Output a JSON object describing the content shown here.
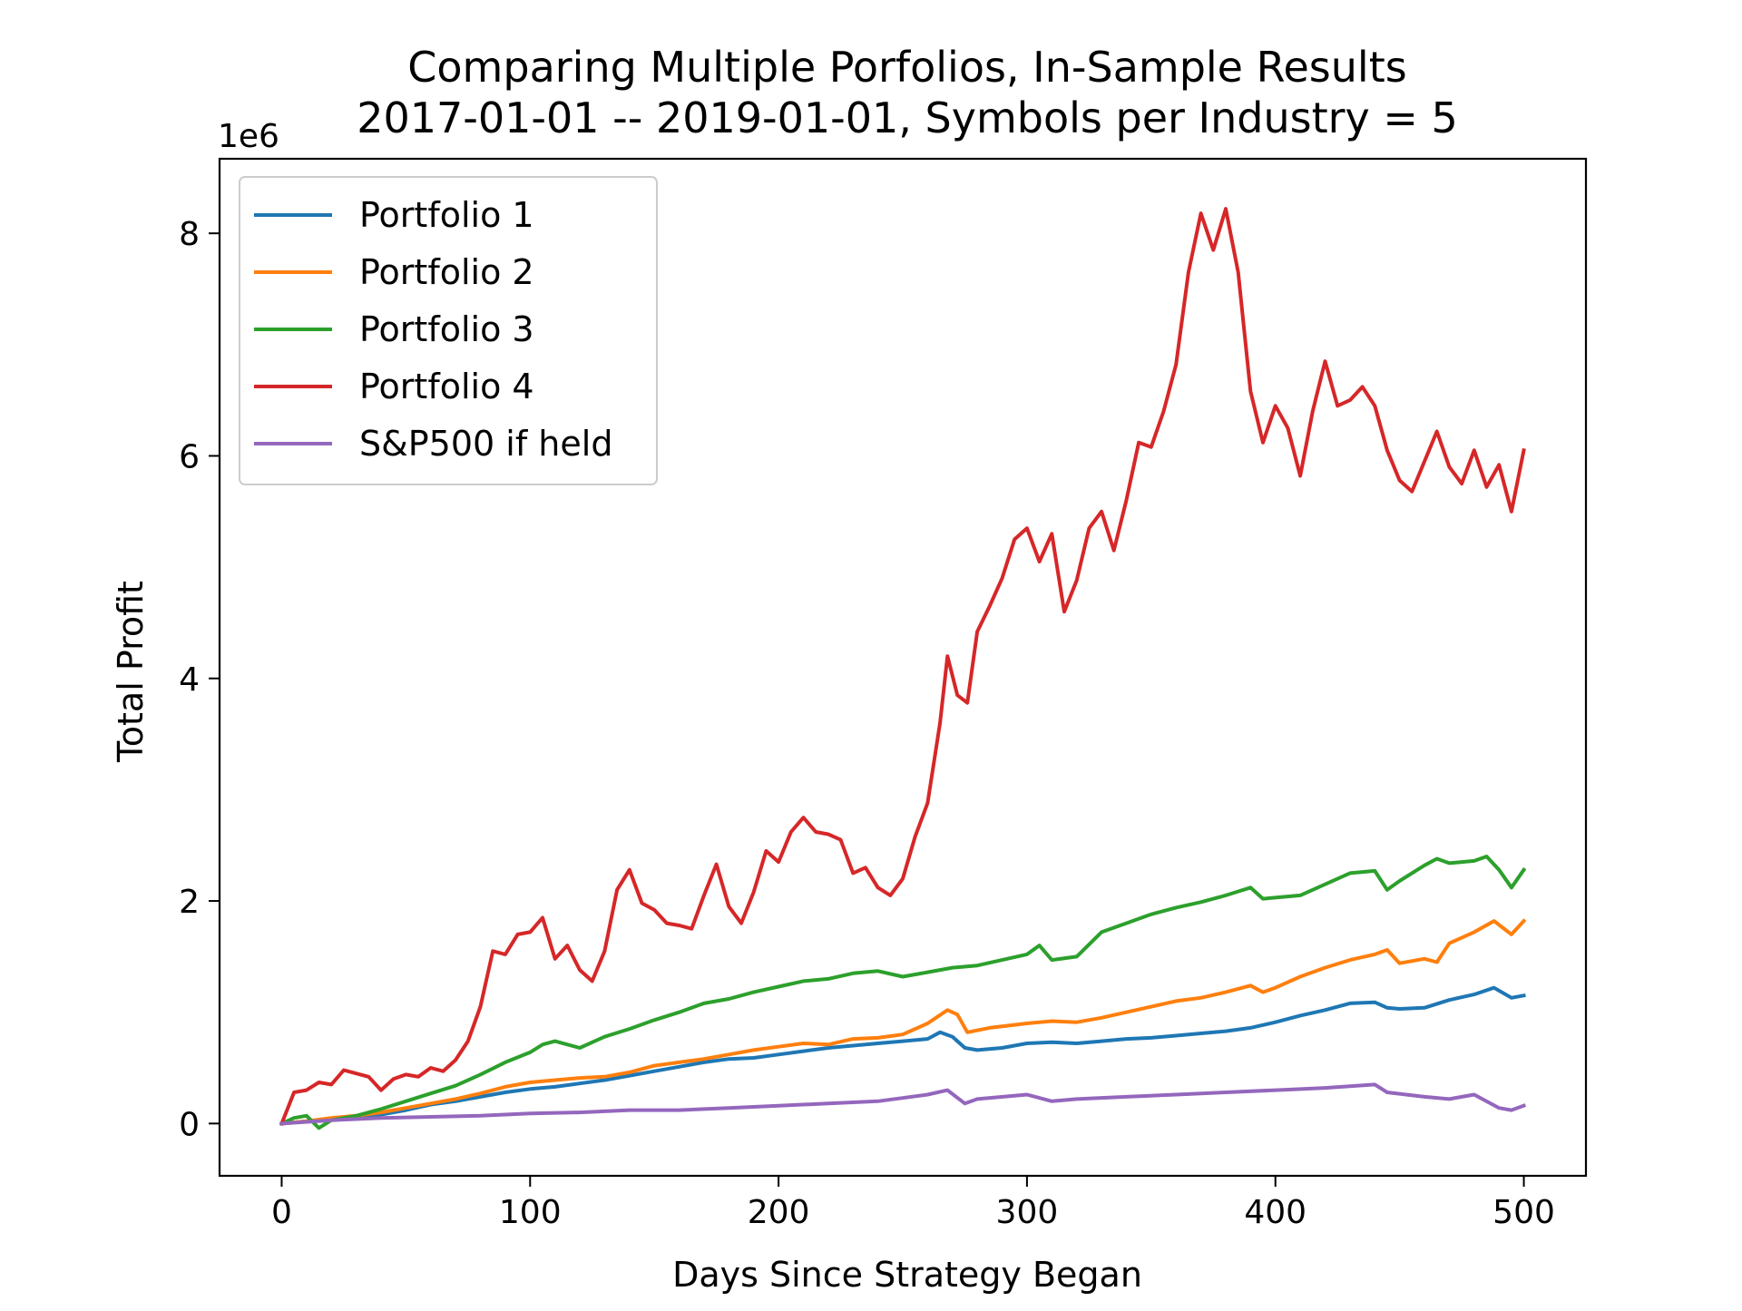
{
  "chart_data": {
    "type": "line",
    "title": "Comparing Multiple Porfolios, In-Sample Results",
    "subtitle": "2017-01-01 -- 2019-01-01, Symbols per Industry = 5",
    "xlabel": "Days Since Strategy Began",
    "ylabel": "Total Profit",
    "y_offset_label": "1e6",
    "xlim": [
      -25,
      525
    ],
    "ylim": [
      -0.47,
      8.67
    ],
    "x_ticks": [
      0,
      100,
      200,
      300,
      400,
      500
    ],
    "y_ticks": [
      0,
      2,
      4,
      6,
      8
    ],
    "y_unit_multiplier": 1000000,
    "grid": false,
    "legend_position": "top-left",
    "series": [
      {
        "name": "Portfolio 1",
        "color": "#1f77b4",
        "points": [
          [
            0,
            0
          ],
          [
            10,
            0.02
          ],
          [
            20,
            0.04
          ],
          [
            30,
            0.06
          ],
          [
            40,
            0.08
          ],
          [
            50,
            0.12
          ],
          [
            60,
            0.17
          ],
          [
            70,
            0.2
          ],
          [
            80,
            0.24
          ],
          [
            90,
            0.28
          ],
          [
            100,
            0.31
          ],
          [
            110,
            0.33
          ],
          [
            120,
            0.36
          ],
          [
            130,
            0.39
          ],
          [
            140,
            0.43
          ],
          [
            150,
            0.47
          ],
          [
            160,
            0.51
          ],
          [
            170,
            0.55
          ],
          [
            180,
            0.58
          ],
          [
            190,
            0.59
          ],
          [
            200,
            0.62
          ],
          [
            210,
            0.65
          ],
          [
            220,
            0.68
          ],
          [
            230,
            0.7
          ],
          [
            240,
            0.72
          ],
          [
            250,
            0.74
          ],
          [
            260,
            0.76
          ],
          [
            265,
            0.82
          ],
          [
            270,
            0.78
          ],
          [
            275,
            0.68
          ],
          [
            280,
            0.66
          ],
          [
            290,
            0.68
          ],
          [
            300,
            0.72
          ],
          [
            310,
            0.73
          ],
          [
            320,
            0.72
          ],
          [
            330,
            0.74
          ],
          [
            340,
            0.76
          ],
          [
            350,
            0.77
          ],
          [
            360,
            0.79
          ],
          [
            370,
            0.81
          ],
          [
            380,
            0.83
          ],
          [
            390,
            0.86
          ],
          [
            400,
            0.91
          ],
          [
            410,
            0.97
          ],
          [
            420,
            1.02
          ],
          [
            430,
            1.08
          ],
          [
            440,
            1.09
          ],
          [
            445,
            1.04
          ],
          [
            450,
            1.03
          ],
          [
            460,
            1.04
          ],
          [
            470,
            1.11
          ],
          [
            480,
            1.16
          ],
          [
            488,
            1.22
          ],
          [
            495,
            1.13
          ],
          [
            500,
            1.15
          ]
        ]
      },
      {
        "name": "Portfolio 2",
        "color": "#ff7f0e",
        "points": [
          [
            0,
            0
          ],
          [
            10,
            0.02
          ],
          [
            20,
            0.05
          ],
          [
            30,
            0.07
          ],
          [
            40,
            0.1
          ],
          [
            50,
            0.14
          ],
          [
            60,
            0.18
          ],
          [
            70,
            0.22
          ],
          [
            80,
            0.27
          ],
          [
            90,
            0.33
          ],
          [
            100,
            0.37
          ],
          [
            110,
            0.39
          ],
          [
            120,
            0.41
          ],
          [
            130,
            0.42
          ],
          [
            140,
            0.46
          ],
          [
            150,
            0.52
          ],
          [
            160,
            0.55
          ],
          [
            170,
            0.58
          ],
          [
            180,
            0.62
          ],
          [
            190,
            0.66
          ],
          [
            200,
            0.69
          ],
          [
            210,
            0.72
          ],
          [
            220,
            0.71
          ],
          [
            230,
            0.76
          ],
          [
            240,
            0.77
          ],
          [
            250,
            0.8
          ],
          [
            260,
            0.9
          ],
          [
            268,
            1.02
          ],
          [
            272,
            0.98
          ],
          [
            276,
            0.82
          ],
          [
            285,
            0.86
          ],
          [
            300,
            0.9
          ],
          [
            310,
            0.92
          ],
          [
            320,
            0.91
          ],
          [
            330,
            0.95
          ],
          [
            340,
            1.0
          ],
          [
            350,
            1.05
          ],
          [
            360,
            1.1
          ],
          [
            370,
            1.13
          ],
          [
            380,
            1.18
          ],
          [
            390,
            1.24
          ],
          [
            395,
            1.18
          ],
          [
            400,
            1.22
          ],
          [
            410,
            1.32
          ],
          [
            420,
            1.4
          ],
          [
            430,
            1.47
          ],
          [
            440,
            1.52
          ],
          [
            445,
            1.56
          ],
          [
            450,
            1.44
          ],
          [
            460,
            1.48
          ],
          [
            465,
            1.45
          ],
          [
            470,
            1.62
          ],
          [
            480,
            1.72
          ],
          [
            488,
            1.82
          ],
          [
            495,
            1.7
          ],
          [
            500,
            1.82
          ]
        ]
      },
      {
        "name": "Portfolio 3",
        "color": "#2ca02c",
        "points": [
          [
            0,
            0
          ],
          [
            5,
            0.05
          ],
          [
            10,
            0.07
          ],
          [
            15,
            -0.04
          ],
          [
            20,
            0.03
          ],
          [
            30,
            0.07
          ],
          [
            40,
            0.13
          ],
          [
            50,
            0.2
          ],
          [
            60,
            0.27
          ],
          [
            70,
            0.34
          ],
          [
            80,
            0.44
          ],
          [
            90,
            0.55
          ],
          [
            100,
            0.64
          ],
          [
            105,
            0.71
          ],
          [
            110,
            0.74
          ],
          [
            120,
            0.68
          ],
          [
            130,
            0.78
          ],
          [
            140,
            0.85
          ],
          [
            150,
            0.93
          ],
          [
            160,
            1.0
          ],
          [
            170,
            1.08
          ],
          [
            180,
            1.12
          ],
          [
            190,
            1.18
          ],
          [
            200,
            1.23
          ],
          [
            210,
            1.28
          ],
          [
            220,
            1.3
          ],
          [
            230,
            1.35
          ],
          [
            240,
            1.37
          ],
          [
            250,
            1.32
          ],
          [
            260,
            1.36
          ],
          [
            270,
            1.4
          ],
          [
            280,
            1.42
          ],
          [
            290,
            1.47
          ],
          [
            300,
            1.52
          ],
          [
            305,
            1.6
          ],
          [
            310,
            1.47
          ],
          [
            320,
            1.5
          ],
          [
            330,
            1.72
          ],
          [
            340,
            1.8
          ],
          [
            350,
            1.88
          ],
          [
            360,
            1.94
          ],
          [
            370,
            1.99
          ],
          [
            380,
            2.05
          ],
          [
            390,
            2.12
          ],
          [
            395,
            2.02
          ],
          [
            400,
            2.03
          ],
          [
            410,
            2.05
          ],
          [
            420,
            2.15
          ],
          [
            430,
            2.25
          ],
          [
            440,
            2.27
          ],
          [
            445,
            2.1
          ],
          [
            450,
            2.18
          ],
          [
            460,
            2.32
          ],
          [
            465,
            2.38
          ],
          [
            470,
            2.34
          ],
          [
            480,
            2.36
          ],
          [
            485,
            2.4
          ],
          [
            490,
            2.28
          ],
          [
            495,
            2.12
          ],
          [
            500,
            2.28
          ]
        ]
      },
      {
        "name": "Portfolio 4",
        "color": "#d62728",
        "points": [
          [
            0,
            0
          ],
          [
            5,
            0.28
          ],
          [
            10,
            0.3
          ],
          [
            15,
            0.37
          ],
          [
            20,
            0.35
          ],
          [
            25,
            0.48
          ],
          [
            30,
            0.45
          ],
          [
            35,
            0.42
          ],
          [
            40,
            0.3
          ],
          [
            45,
            0.4
          ],
          [
            50,
            0.44
          ],
          [
            55,
            0.42
          ],
          [
            60,
            0.5
          ],
          [
            65,
            0.47
          ],
          [
            70,
            0.57
          ],
          [
            75,
            0.74
          ],
          [
            80,
            1.05
          ],
          [
            85,
            1.55
          ],
          [
            90,
            1.52
          ],
          [
            95,
            1.7
          ],
          [
            100,
            1.72
          ],
          [
            105,
            1.85
          ],
          [
            110,
            1.48
          ],
          [
            115,
            1.6
          ],
          [
            120,
            1.38
          ],
          [
            125,
            1.28
          ],
          [
            130,
            1.55
          ],
          [
            135,
            2.1
          ],
          [
            140,
            2.28
          ],
          [
            145,
            1.98
          ],
          [
            150,
            1.92
          ],
          [
            155,
            1.8
          ],
          [
            160,
            1.78
          ],
          [
            165,
            1.75
          ],
          [
            170,
            2.05
          ],
          [
            175,
            2.33
          ],
          [
            180,
            1.95
          ],
          [
            185,
            1.8
          ],
          [
            190,
            2.08
          ],
          [
            195,
            2.45
          ],
          [
            200,
            2.35
          ],
          [
            205,
            2.62
          ],
          [
            210,
            2.75
          ],
          [
            215,
            2.62
          ],
          [
            220,
            2.6
          ],
          [
            225,
            2.55
          ],
          [
            230,
            2.25
          ],
          [
            235,
            2.3
          ],
          [
            240,
            2.12
          ],
          [
            245,
            2.05
          ],
          [
            250,
            2.2
          ],
          [
            255,
            2.58
          ],
          [
            260,
            2.88
          ],
          [
            265,
            3.6
          ],
          [
            268,
            4.2
          ],
          [
            272,
            3.85
          ],
          [
            276,
            3.78
          ],
          [
            280,
            4.42
          ],
          [
            285,
            4.65
          ],
          [
            290,
            4.9
          ],
          [
            295,
            5.25
          ],
          [
            300,
            5.35
          ],
          [
            305,
            5.05
          ],
          [
            310,
            5.3
          ],
          [
            315,
            4.6
          ],
          [
            320,
            4.88
          ],
          [
            325,
            5.35
          ],
          [
            330,
            5.5
          ],
          [
            335,
            5.15
          ],
          [
            340,
            5.6
          ],
          [
            345,
            6.12
          ],
          [
            350,
            6.08
          ],
          [
            355,
            6.4
          ],
          [
            360,
            6.82
          ],
          [
            365,
            7.65
          ],
          [
            370,
            8.18
          ],
          [
            375,
            7.85
          ],
          [
            380,
            8.22
          ],
          [
            385,
            7.65
          ],
          [
            390,
            6.58
          ],
          [
            395,
            6.12
          ],
          [
            400,
            6.45
          ],
          [
            405,
            6.25
          ],
          [
            410,
            5.82
          ],
          [
            415,
            6.4
          ],
          [
            420,
            6.85
          ],
          [
            425,
            6.45
          ],
          [
            430,
            6.5
          ],
          [
            435,
            6.62
          ],
          [
            440,
            6.45
          ],
          [
            445,
            6.05
          ],
          [
            450,
            5.78
          ],
          [
            455,
            5.68
          ],
          [
            460,
            5.95
          ],
          [
            465,
            6.22
          ],
          [
            470,
            5.9
          ],
          [
            475,
            5.75
          ],
          [
            480,
            6.05
          ],
          [
            485,
            5.72
          ],
          [
            490,
            5.92
          ],
          [
            495,
            5.5
          ],
          [
            500,
            6.05
          ]
        ]
      },
      {
        "name": "S&P500 if held",
        "color": "#9467bd",
        "points": [
          [
            0,
            0
          ],
          [
            20,
            0.03
          ],
          [
            40,
            0.05
          ],
          [
            60,
            0.06
          ],
          [
            80,
            0.07
          ],
          [
            100,
            0.09
          ],
          [
            120,
            0.1
          ],
          [
            140,
            0.12
          ],
          [
            160,
            0.12
          ],
          [
            180,
            0.14
          ],
          [
            200,
            0.16
          ],
          [
            220,
            0.18
          ],
          [
            240,
            0.2
          ],
          [
            260,
            0.26
          ],
          [
            268,
            0.3
          ],
          [
            275,
            0.18
          ],
          [
            280,
            0.22
          ],
          [
            300,
            0.26
          ],
          [
            310,
            0.2
          ],
          [
            320,
            0.22
          ],
          [
            340,
            0.24
          ],
          [
            360,
            0.26
          ],
          [
            380,
            0.28
          ],
          [
            400,
            0.3
          ],
          [
            420,
            0.32
          ],
          [
            440,
            0.35
          ],
          [
            445,
            0.28
          ],
          [
            460,
            0.24
          ],
          [
            470,
            0.22
          ],
          [
            480,
            0.26
          ],
          [
            490,
            0.14
          ],
          [
            495,
            0.12
          ],
          [
            500,
            0.16
          ]
        ]
      }
    ]
  }
}
